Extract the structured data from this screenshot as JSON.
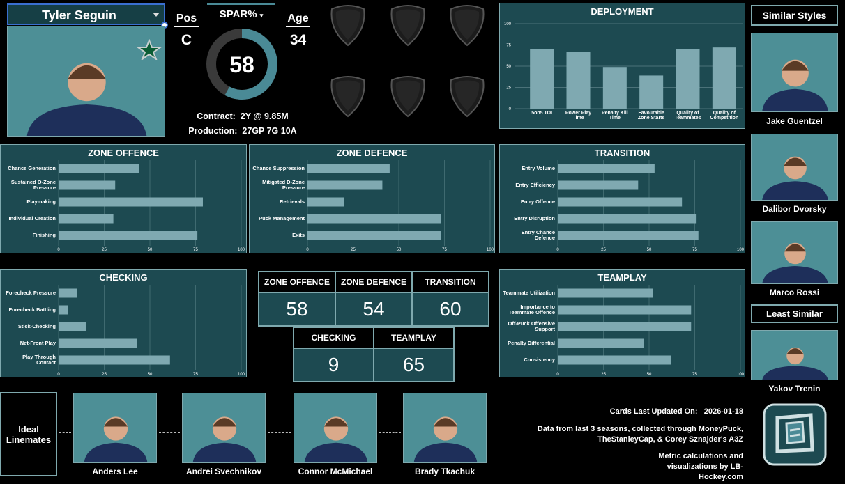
{
  "player": {
    "name": "Tyler Seguin",
    "pos_label": "Pos",
    "pos": "C",
    "spar_label": "SPAR%",
    "spar": 58,
    "age_label": "Age",
    "age": 34,
    "contract_label": "Contract:",
    "contract": "2Y @ 9.85M",
    "production_label": "Production:",
    "production": "27GP 7G 10A"
  },
  "chart_data": [
    {
      "type": "bar",
      "title": "DEPLOYMENT",
      "categories": [
        "5on5 TOI",
        "Power Play Time",
        "Penalty Kill Time",
        "Favourable Zone Starts",
        "Quality of Teammates",
        "Quality of Competition"
      ],
      "values": [
        70,
        67,
        49,
        39,
        70,
        72
      ],
      "color": "#7fa9b1",
      "ylim": [
        0,
        100
      ],
      "yticks": [
        0,
        25,
        50,
        75,
        100
      ],
      "grid": true
    },
    {
      "type": "hbar",
      "title": "ZONE OFFENCE",
      "categories": [
        "Chance Generation",
        "Sustained O-Zone Pressure",
        "Playmaking",
        "Individual Creation",
        "Finishing"
      ],
      "values": [
        44,
        31,
        79,
        30,
        76
      ],
      "color": "#7fa9b1",
      "xlim": [
        0,
        100
      ],
      "xticks": [
        0,
        25,
        50,
        75,
        100
      ],
      "grid": true
    },
    {
      "type": "hbar",
      "title": "ZONE DEFENCE",
      "categories": [
        "Chance Suppression",
        "Mitigated D-Zone Pressure",
        "Retrievals",
        "Puck Management",
        "Exits"
      ],
      "values": [
        45,
        41,
        20,
        73,
        73
      ],
      "color": "#7fa9b1",
      "xlim": [
        0,
        100
      ],
      "xticks": [
        0,
        25,
        50,
        75,
        100
      ],
      "grid": true
    },
    {
      "type": "hbar",
      "title": "TRANSITION",
      "categories": [
        "Entry Volume",
        "Entry Efficiency",
        "Entry Offence",
        "Entry Disruption",
        "Entry Chance Defence"
      ],
      "values": [
        53,
        44,
        68,
        76,
        77
      ],
      "color": "#7fa9b1",
      "xlim": [
        0,
        100
      ],
      "xticks": [
        0,
        25,
        50,
        75,
        100
      ],
      "grid": true
    },
    {
      "type": "hbar",
      "title": "CHECKING",
      "categories": [
        "Forecheck Pressure",
        "Forecheck Battling",
        "Stick-Checking",
        "Net-Front Play",
        "Play Through Contact"
      ],
      "values": [
        10,
        5,
        15,
        43,
        61
      ],
      "color": "#7fa9b1",
      "xlim": [
        0,
        100
      ],
      "xticks": [
        0,
        25,
        50,
        75,
        100
      ],
      "grid": true
    },
    {
      "type": "hbar",
      "title": "TEAMPLAY",
      "categories": [
        "Teammate Utilization",
        "Importance to Teammate Offence",
        "Off-Puck Offensive Support",
        "Penalty Differential",
        "Consistency"
      ],
      "values": [
        52,
        73,
        73,
        47,
        62
      ],
      "color": "#7fa9b1",
      "xlim": [
        0,
        100
      ],
      "xticks": [
        0,
        25,
        50,
        75,
        100
      ],
      "grid": true
    }
  ],
  "score_table": {
    "rows": [
      [
        {
          "label": "ZONE OFFENCE",
          "value": 58
        },
        {
          "label": "ZONE DEFENCE",
          "value": 54
        },
        {
          "label": "TRANSITION",
          "value": 60
        }
      ],
      [
        {
          "label": "CHECKING",
          "value": 9
        },
        {
          "label": "TEAMPLAY",
          "value": 65
        }
      ]
    ]
  },
  "similar": {
    "title": "Similar Styles",
    "players": [
      "Jake Guentzel",
      "Dalibor Dvorsky",
      "Marco Rossi"
    ]
  },
  "least_similar": {
    "title": "Least Similar",
    "players": [
      "Yakov Trenin"
    ]
  },
  "linemates": {
    "title": "Ideal Linemates",
    "players": [
      "Anders Lee",
      "Andrei Svechnikov",
      "Connor McMichael",
      "Brady Tkachuk"
    ]
  },
  "footer": {
    "updated_label": "Cards Last Updated On:",
    "updated": "2026-01-18",
    "source": "Data from last 3 seasons, collected through MoneyPuck, TheStanleyCap, & Corey Sznajder's A3Z",
    "credit": "Metric calculations and visualizations by LB-Hockey.com"
  }
}
